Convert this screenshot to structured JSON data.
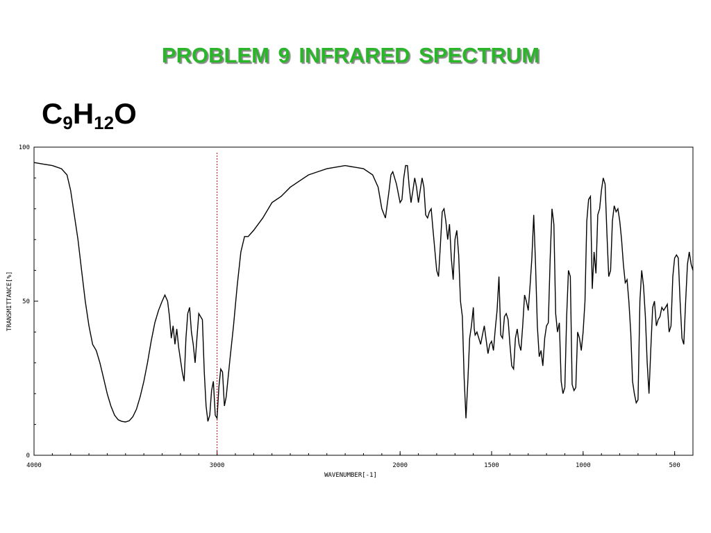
{
  "slide": {
    "title": "PROBLEM  9   INFRARED SPECTRUM",
    "formula": {
      "c": "C",
      "c_sub": "9",
      "h": "H",
      "h_sub": "12",
      "o": "O"
    }
  },
  "chart_data": {
    "type": "line",
    "xlabel": "WAVENUMBER[-1]",
    "ylabel": "TRANSMITTANCE[%]",
    "xlim": [
      4000,
      400
    ],
    "ylim": [
      0,
      100
    ],
    "x_reversed": true,
    "grid": false,
    "x_ticks": [
      {
        "value": 4000,
        "label": "4000"
      },
      {
        "value": 3000,
        "label": "3000"
      },
      {
        "value": 2000,
        "label": "2000"
      },
      {
        "value": 1500,
        "label": "1500"
      },
      {
        "value": 1000,
        "label": "1000"
      },
      {
        "value": 500,
        "label": "500"
      }
    ],
    "y_ticks": [
      {
        "value": 100,
        "label": "100"
      },
      {
        "value": 50,
        "label": "50"
      },
      {
        "value": 0,
        "label": "0"
      }
    ],
    "reference_line": {
      "x": 3000,
      "color": "#cc0000",
      "style": "dotted"
    },
    "series": [
      {
        "color": "#000000",
        "points": [
          [
            4000,
            95
          ],
          [
            3950,
            94.5
          ],
          [
            3900,
            94
          ],
          [
            3850,
            93
          ],
          [
            3820,
            91
          ],
          [
            3800,
            86
          ],
          [
            3780,
            78
          ],
          [
            3760,
            70
          ],
          [
            3740,
            60
          ],
          [
            3720,
            50
          ],
          [
            3700,
            42
          ],
          [
            3680,
            36
          ],
          [
            3660,
            34
          ],
          [
            3640,
            30
          ],
          [
            3620,
            25
          ],
          [
            3600,
            20
          ],
          [
            3580,
            16
          ],
          [
            3560,
            13
          ],
          [
            3540,
            11.5
          ],
          [
            3520,
            11
          ],
          [
            3500,
            10.8
          ],
          [
            3480,
            11.2
          ],
          [
            3460,
            12.5
          ],
          [
            3440,
            15
          ],
          [
            3420,
            19
          ],
          [
            3400,
            24
          ],
          [
            3380,
            30
          ],
          [
            3360,
            37
          ],
          [
            3340,
            43
          ],
          [
            3320,
            47
          ],
          [
            3300,
            50
          ],
          [
            3285,
            52
          ],
          [
            3270,
            50
          ],
          [
            3260,
            45
          ],
          [
            3250,
            38
          ],
          [
            3240,
            42
          ],
          [
            3230,
            36
          ],
          [
            3220,
            41
          ],
          [
            3210,
            35
          ],
          [
            3200,
            31
          ],
          [
            3190,
            27
          ],
          [
            3180,
            24
          ],
          [
            3170,
            38
          ],
          [
            3160,
            46
          ],
          [
            3150,
            48
          ],
          [
            3140,
            40
          ],
          [
            3130,
            36
          ],
          [
            3120,
            30
          ],
          [
            3110,
            38
          ],
          [
            3100,
            46
          ],
          [
            3080,
            44
          ],
          [
            3070,
            27
          ],
          [
            3060,
            16
          ],
          [
            3050,
            11
          ],
          [
            3040,
            13
          ],
          [
            3030,
            21
          ],
          [
            3020,
            24
          ],
          [
            3010,
            13
          ],
          [
            3000,
            12
          ],
          [
            2990,
            22
          ],
          [
            2980,
            28
          ],
          [
            2970,
            27
          ],
          [
            2960,
            16
          ],
          [
            2950,
            19
          ],
          [
            2930,
            31
          ],
          [
            2910,
            42
          ],
          [
            2890,
            55
          ],
          [
            2870,
            66
          ],
          [
            2850,
            71
          ],
          [
            2830,
            71
          ],
          [
            2800,
            73
          ],
          [
            2750,
            77
          ],
          [
            2700,
            82
          ],
          [
            2650,
            84
          ],
          [
            2600,
            87
          ],
          [
            2550,
            89
          ],
          [
            2500,
            91
          ],
          [
            2450,
            92
          ],
          [
            2400,
            93
          ],
          [
            2300,
            94
          ],
          [
            2200,
            93
          ],
          [
            2150,
            91
          ],
          [
            2120,
            87
          ],
          [
            2100,
            80
          ],
          [
            2080,
            77
          ],
          [
            2060,
            86
          ],
          [
            2050,
            91
          ],
          [
            2040,
            92
          ],
          [
            2020,
            88
          ],
          [
            2000,
            82
          ],
          [
            1990,
            83
          ],
          [
            1980,
            90
          ],
          [
            1970,
            94
          ],
          [
            1960,
            94
          ],
          [
            1950,
            87
          ],
          [
            1940,
            82
          ],
          [
            1930,
            86
          ],
          [
            1920,
            90
          ],
          [
            1910,
            87
          ],
          [
            1900,
            82
          ],
          [
            1890,
            86
          ],
          [
            1880,
            90
          ],
          [
            1870,
            87
          ],
          [
            1860,
            78
          ],
          [
            1850,
            77
          ],
          [
            1840,
            79
          ],
          [
            1830,
            80
          ],
          [
            1820,
            73
          ],
          [
            1800,
            60
          ],
          [
            1790,
            58
          ],
          [
            1780,
            68
          ],
          [
            1770,
            79
          ],
          [
            1760,
            80
          ],
          [
            1750,
            76
          ],
          [
            1740,
            70
          ],
          [
            1730,
            75
          ],
          [
            1720,
            64
          ],
          [
            1710,
            57
          ],
          [
            1700,
            70
          ],
          [
            1690,
            73
          ],
          [
            1680,
            65
          ],
          [
            1670,
            50
          ],
          [
            1660,
            45
          ],
          [
            1650,
            25
          ],
          [
            1640,
            12
          ],
          [
            1630,
            24
          ],
          [
            1620,
            38
          ],
          [
            1610,
            42
          ],
          [
            1600,
            48
          ],
          [
            1595,
            41
          ],
          [
            1590,
            39
          ],
          [
            1580,
            40
          ],
          [
            1570,
            38
          ],
          [
            1560,
            36
          ],
          [
            1550,
            39
          ],
          [
            1540,
            42
          ],
          [
            1520,
            33
          ],
          [
            1510,
            36
          ],
          [
            1500,
            37
          ],
          [
            1490,
            34
          ],
          [
            1480,
            41
          ],
          [
            1470,
            47
          ],
          [
            1460,
            58
          ],
          [
            1450,
            39
          ],
          [
            1440,
            38
          ],
          [
            1430,
            45
          ],
          [
            1420,
            46
          ],
          [
            1410,
            44
          ],
          [
            1400,
            36
          ],
          [
            1390,
            29
          ],
          [
            1380,
            28
          ],
          [
            1370,
            38
          ],
          [
            1360,
            41
          ],
          [
            1350,
            36
          ],
          [
            1340,
            34
          ],
          [
            1330,
            42
          ],
          [
            1320,
            52
          ],
          [
            1310,
            50
          ],
          [
            1300,
            47
          ],
          [
            1290,
            55
          ],
          [
            1280,
            64
          ],
          [
            1270,
            78
          ],
          [
            1260,
            62
          ],
          [
            1250,
            42
          ],
          [
            1240,
            32
          ],
          [
            1230,
            34
          ],
          [
            1220,
            29
          ],
          [
            1210,
            38
          ],
          [
            1200,
            42
          ],
          [
            1190,
            43
          ],
          [
            1180,
            64
          ],
          [
            1170,
            80
          ],
          [
            1160,
            75
          ],
          [
            1150,
            46
          ],
          [
            1140,
            40
          ],
          [
            1130,
            43
          ],
          [
            1120,
            24
          ],
          [
            1110,
            20
          ],
          [
            1100,
            22
          ],
          [
            1090,
            45
          ],
          [
            1080,
            60
          ],
          [
            1070,
            58
          ],
          [
            1060,
            23
          ],
          [
            1050,
            21
          ],
          [
            1040,
            22
          ],
          [
            1030,
            40
          ],
          [
            1020,
            38
          ],
          [
            1010,
            34
          ],
          [
            1000,
            40
          ],
          [
            990,
            50
          ],
          [
            980,
            76
          ],
          [
            970,
            83
          ],
          [
            960,
            84
          ],
          [
            950,
            54
          ],
          [
            940,
            66
          ],
          [
            930,
            59
          ],
          [
            920,
            78
          ],
          [
            910,
            80
          ],
          [
            900,
            86
          ],
          [
            890,
            90
          ],
          [
            880,
            88
          ],
          [
            870,
            72
          ],
          [
            860,
            58
          ],
          [
            850,
            60
          ],
          [
            840,
            76
          ],
          [
            830,
            81
          ],
          [
            820,
            79
          ],
          [
            810,
            80
          ],
          [
            800,
            76
          ],
          [
            790,
            70
          ],
          [
            780,
            62
          ],
          [
            770,
            56
          ],
          [
            760,
            57
          ],
          [
            750,
            50
          ],
          [
            740,
            40
          ],
          [
            730,
            24
          ],
          [
            720,
            20
          ],
          [
            710,
            17
          ],
          [
            700,
            18
          ],
          [
            690,
            50
          ],
          [
            680,
            60
          ],
          [
            670,
            55
          ],
          [
            660,
            45
          ],
          [
            650,
            30
          ],
          [
            640,
            20
          ],
          [
            630,
            35
          ],
          [
            620,
            48
          ],
          [
            610,
            50
          ],
          [
            600,
            42
          ],
          [
            590,
            44
          ],
          [
            580,
            45
          ],
          [
            570,
            48
          ],
          [
            560,
            47
          ],
          [
            550,
            48
          ],
          [
            540,
            49
          ],
          [
            530,
            40
          ],
          [
            520,
            42
          ],
          [
            510,
            58
          ],
          [
            500,
            64
          ],
          [
            490,
            65
          ],
          [
            480,
            64
          ],
          [
            470,
            50
          ],
          [
            460,
            38
          ],
          [
            450,
            36
          ],
          [
            440,
            50
          ],
          [
            430,
            62
          ],
          [
            420,
            66
          ],
          [
            410,
            62
          ],
          [
            400,
            60
          ]
        ]
      }
    ]
  }
}
